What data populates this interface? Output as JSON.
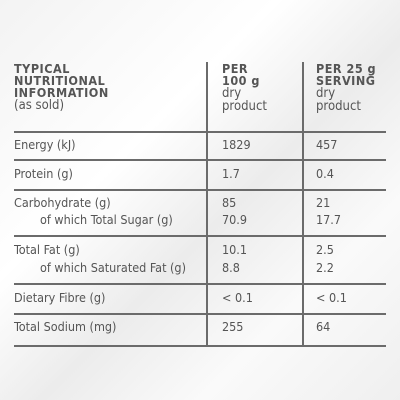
{
  "header": {
    "label_lines": [
      "TYPICAL",
      "NUTRITIONAL",
      "INFORMATION"
    ],
    "label_sub": "(as sold)",
    "col1_lines": [
      "PER",
      "100 g"
    ],
    "col1_sub": [
      "dry",
      "product"
    ],
    "col2_lines": [
      "PER 25 g",
      "SERVING"
    ],
    "col2_sub": [
      "dry",
      "product"
    ]
  },
  "rows": [
    {
      "label": "Energy (kJ)",
      "v1": "1829",
      "v2": "457"
    },
    {
      "label": "Protein (g)",
      "v1": "1.7",
      "v2": "0.4"
    },
    {
      "label": "Carbohydrate (g)",
      "v1": "85",
      "v2": "21",
      "sub_label": "of which Total Sugar (g)",
      "sub_v1": "70.9",
      "sub_v2": "17.7"
    },
    {
      "label": "Total Fat (g)",
      "v1": "10.1",
      "v2": "2.5",
      "sub_label": "of which Saturated Fat (g)",
      "sub_v1": "8.8",
      "sub_v2": "2.2"
    },
    {
      "label": "Dietary Fibre (g)",
      "v1": "< 0.1",
      "v2": "< 0.1"
    },
    {
      "label": "Total Sodium (mg)",
      "v1": "255",
      "v2": "64"
    }
  ]
}
